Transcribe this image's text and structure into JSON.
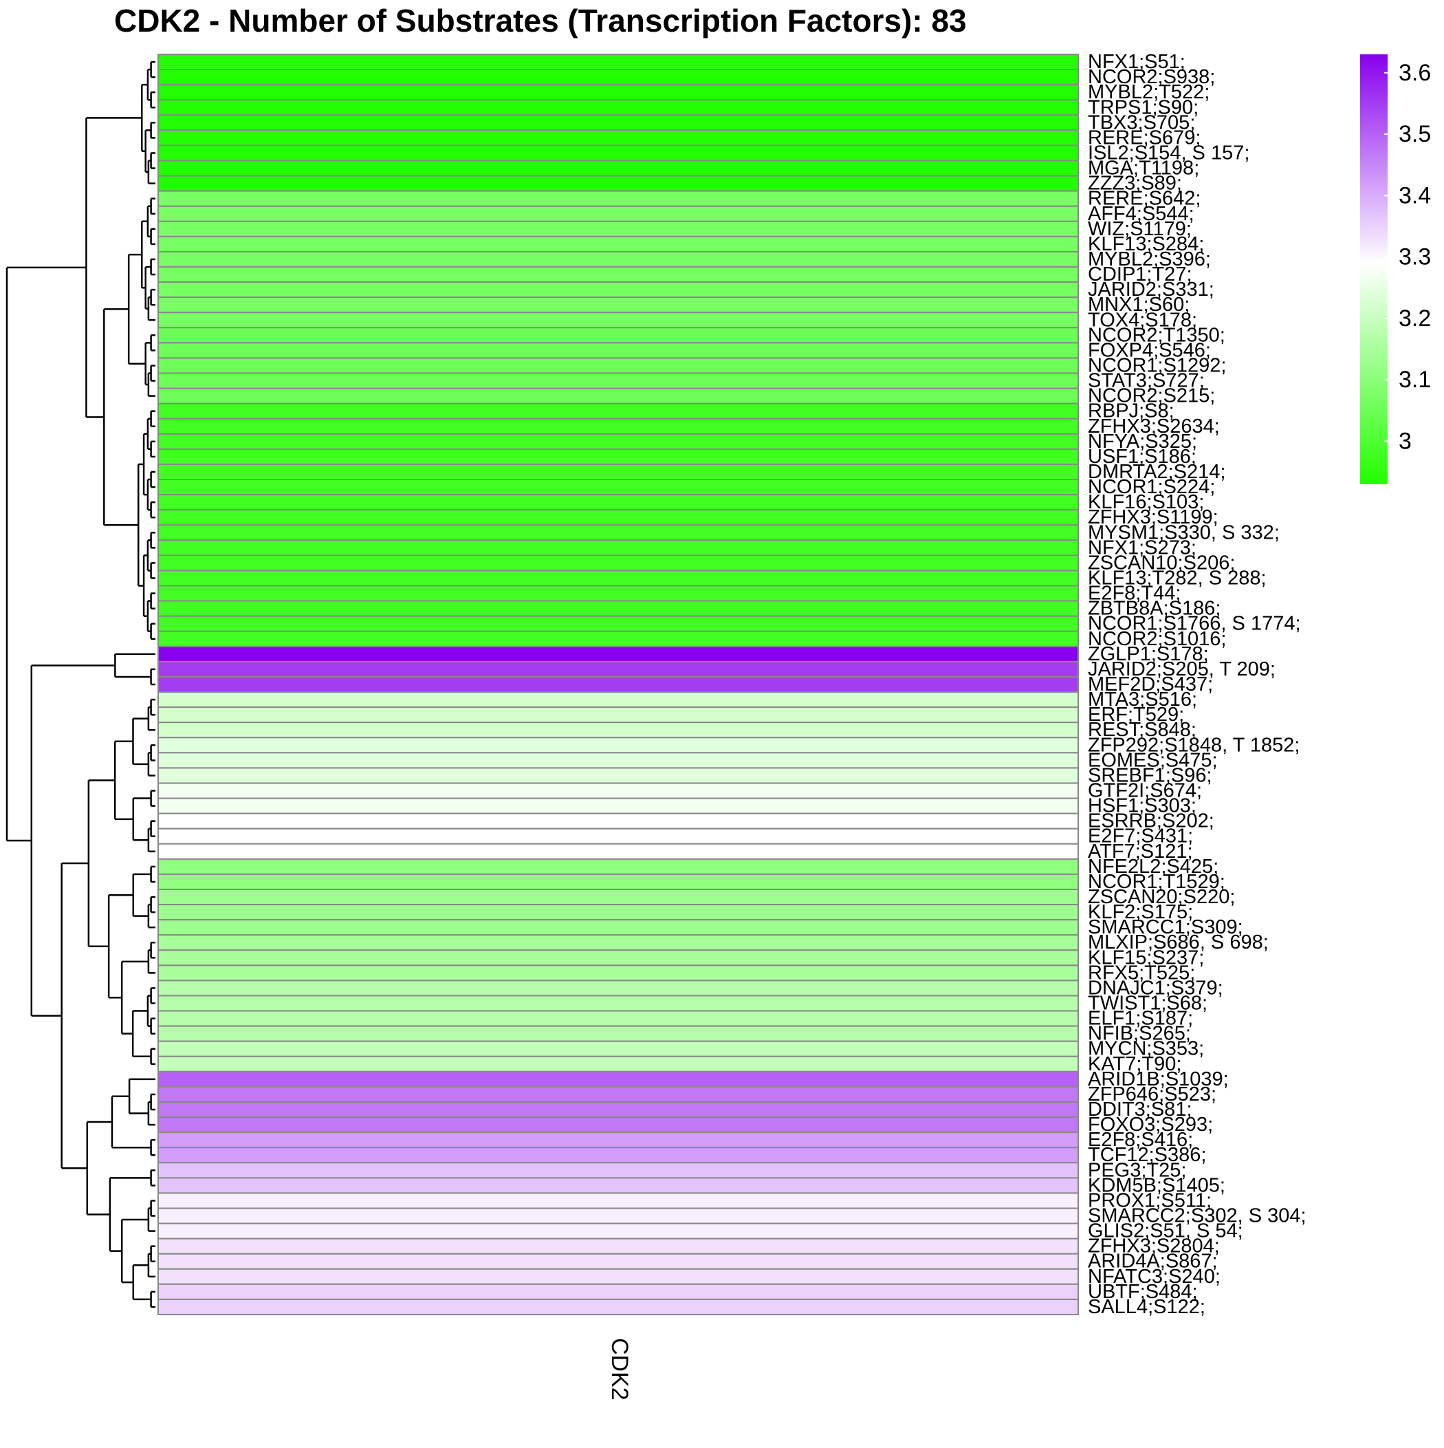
{
  "chart_data": {
    "type": "heatmap",
    "title": "CDK2 - Number of Substrates (Transcription Factors): 83",
    "columns": [
      "CDK2"
    ],
    "dendrogram": "rows",
    "legend_position": "top-right",
    "color_scale": {
      "low_color": "#22ff00",
      "mid_color": "#ffffff",
      "high_color": "#8800ee",
      "min": 2.93,
      "mid": 3.29,
      "max": 3.63,
      "ticks": [
        3,
        3.1,
        3.2,
        3.3,
        3.4,
        3.5,
        3.6
      ]
    },
    "rows": [
      {
        "label": "NFX1;S51;",
        "value": 2.93
      },
      {
        "label": "NCOR2;S938;",
        "value": 2.93
      },
      {
        "label": "MYBL2;T522;",
        "value": 2.93
      },
      {
        "label": "TRPS1;S90;",
        "value": 2.93
      },
      {
        "label": "TBX3;S705;",
        "value": 2.93
      },
      {
        "label": "RERE;S679;",
        "value": 2.93
      },
      {
        "label": "ISL2;S154, S 157;",
        "value": 2.93
      },
      {
        "label": "MGA;T1198;",
        "value": 2.93
      },
      {
        "label": "ZZZ3;S89;",
        "value": 2.93
      },
      {
        "label": "RERE;S642;",
        "value": 3.07
      },
      {
        "label": "AFF4;S544;",
        "value": 3.07
      },
      {
        "label": "WIZ;S1179;",
        "value": 3.07
      },
      {
        "label": "KLF13;S284;",
        "value": 3.07
      },
      {
        "label": "MYBL2;S396;",
        "value": 3.07
      },
      {
        "label": "CDIP1;T27;",
        "value": 3.07
      },
      {
        "label": "JARID2;S331;",
        "value": 3.07
      },
      {
        "label": "MNX1;S60;",
        "value": 3.07
      },
      {
        "label": "TOX4;S178;",
        "value": 3.07
      },
      {
        "label": "NCOR2;T1350;",
        "value": 3.05
      },
      {
        "label": "FOXP4;S546;",
        "value": 3.05
      },
      {
        "label": "NCOR1;S1292;",
        "value": 3.05
      },
      {
        "label": "STAT3;S727;",
        "value": 3.05
      },
      {
        "label": "NCOR2;S215;",
        "value": 3.05
      },
      {
        "label": "RBPJ;S8;",
        "value": 2.98
      },
      {
        "label": "ZFHX3;S2634;",
        "value": 2.98
      },
      {
        "label": "NFYA;S325;",
        "value": 2.98
      },
      {
        "label": "USF1;S186;",
        "value": 2.98
      },
      {
        "label": "DMRTA2;S214;",
        "value": 2.98
      },
      {
        "label": "NCOR1;S224;",
        "value": 2.98
      },
      {
        "label": "KLF16;S103;",
        "value": 2.98
      },
      {
        "label": "ZFHX3;S1199;",
        "value": 2.98
      },
      {
        "label": "MYSM1;S330, S 332;",
        "value": 2.98
      },
      {
        "label": "NFX1;S273;",
        "value": 2.98
      },
      {
        "label": "ZSCAN10;S206;",
        "value": 2.98
      },
      {
        "label": "KLF13;T282, S 288;",
        "value": 2.98
      },
      {
        "label": "E2F8;T44;",
        "value": 2.98
      },
      {
        "label": "ZBTB8A;S186;",
        "value": 2.98
      },
      {
        "label": "NCOR1;S1766, S 1774;",
        "value": 2.98
      },
      {
        "label": "NCOR2;S1016;",
        "value": 2.98
      },
      {
        "label": "ZGLP1;S178;",
        "value": 3.63
      },
      {
        "label": "JARID2;S205, T 209;",
        "value": 3.55
      },
      {
        "label": "MEF2D;S437;",
        "value": 3.55
      },
      {
        "label": "MTA3;S516;",
        "value": 3.22
      },
      {
        "label": "ERF;T529;",
        "value": 3.22
      },
      {
        "label": "REST;S848;",
        "value": 3.22
      },
      {
        "label": "ZFP292;S1848, T 1852;",
        "value": 3.24
      },
      {
        "label": "EOMES;S475;",
        "value": 3.24
      },
      {
        "label": "SREBF1;S96;",
        "value": 3.24
      },
      {
        "label": "GTF2I;S674;",
        "value": 3.27
      },
      {
        "label": "HSF1;S303;",
        "value": 3.27
      },
      {
        "label": "ESRRB;S202;",
        "value": 3.29
      },
      {
        "label": "E2F7;S431;",
        "value": 3.29
      },
      {
        "label": "ATF7;S121;",
        "value": 3.29
      },
      {
        "label": "NFE2L2;S425;",
        "value": 3.11
      },
      {
        "label": "NCOR1;T1529;",
        "value": 3.11
      },
      {
        "label": "ZSCAN20;S220;",
        "value": 3.13
      },
      {
        "label": "KLF2;S175;",
        "value": 3.13
      },
      {
        "label": "SMARCC1;S309;",
        "value": 3.13
      },
      {
        "label": "MLXIP;S686, S 698;",
        "value": 3.15
      },
      {
        "label": "KLF15;S237;",
        "value": 3.15
      },
      {
        "label": "RFX5;T525;",
        "value": 3.15
      },
      {
        "label": "DNAJC1;S379;",
        "value": 3.17
      },
      {
        "label": "TWIST1;S68;",
        "value": 3.17
      },
      {
        "label": "ELF1;S187;",
        "value": 3.17
      },
      {
        "label": "NFIB;S265;",
        "value": 3.17
      },
      {
        "label": "MYCN;S353;",
        "value": 3.19
      },
      {
        "label": "KAT7;T90;",
        "value": 3.19
      },
      {
        "label": "ARID1B;S1039;",
        "value": 3.5
      },
      {
        "label": "ZFP646;S523;",
        "value": 3.47
      },
      {
        "label": "DDIT3;S81;",
        "value": 3.47
      },
      {
        "label": "FOXO3;S293;",
        "value": 3.47
      },
      {
        "label": "E2F8;S416;",
        "value": 3.42
      },
      {
        "label": "TCF12;S386;",
        "value": 3.42
      },
      {
        "label": "PEG3;T25;",
        "value": 3.37
      },
      {
        "label": "KDM5B;S1405;",
        "value": 3.37
      },
      {
        "label": "PROX1;S511;",
        "value": 3.31
      },
      {
        "label": "SMARCC2;S302, S 304;",
        "value": 3.31
      },
      {
        "label": "GLIS2;S51, S 54;",
        "value": 3.31
      },
      {
        "label": "ZFHX3;S2804;",
        "value": 3.33
      },
      {
        "label": "ARID4A;S867;",
        "value": 3.33
      },
      {
        "label": "NFATC3;S240;",
        "value": 3.33
      },
      {
        "label": "UBTF;S484;",
        "value": 3.35
      },
      {
        "label": "SALL4;S122;",
        "value": 3.35
      }
    ]
  }
}
